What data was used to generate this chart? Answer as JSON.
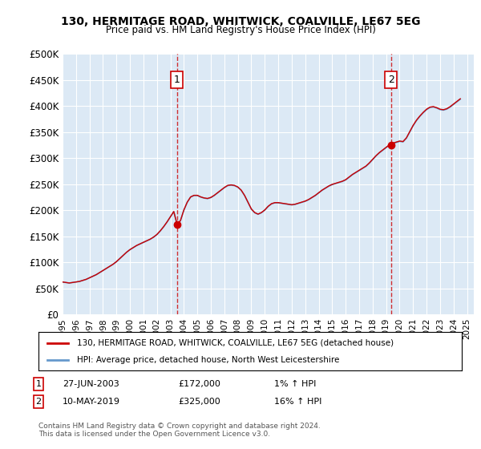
{
  "title": "130, HERMITAGE ROAD, WHITWICK, COALVILLE, LE67 5EG",
  "subtitle": "Price paid vs. HM Land Registry's House Price Index (HPI)",
  "xlabel": "",
  "ylabel": "",
  "ylim": [
    0,
    500000
  ],
  "yticks": [
    0,
    50000,
    100000,
    150000,
    200000,
    250000,
    300000,
    350000,
    400000,
    450000,
    500000
  ],
  "ytick_labels": [
    "£0",
    "£50K",
    "£100K",
    "£150K",
    "£200K",
    "£250K",
    "£300K",
    "£350K",
    "£400K",
    "£450K",
    "£500K"
  ],
  "xlim_start": 1995.0,
  "xlim_end": 2025.5,
  "xtick_years": [
    1995,
    1996,
    1997,
    1998,
    1999,
    2000,
    2001,
    2002,
    2003,
    2004,
    2005,
    2006,
    2007,
    2008,
    2009,
    2010,
    2011,
    2012,
    2013,
    2014,
    2015,
    2016,
    2017,
    2018,
    2019,
    2020,
    2021,
    2022,
    2023,
    2024,
    2025
  ],
  "background_color": "#ffffff",
  "plot_bg_color": "#dce9f5",
  "grid_color": "#ffffff",
  "red_line_color": "#cc0000",
  "blue_line_color": "#6699cc",
  "event1_x": 2003.49,
  "event1_y": 172000,
  "event2_x": 2019.36,
  "event2_y": 325000,
  "legend_line1": "130, HERMITAGE ROAD, WHITWICK, COALVILLE, LE67 5EG (detached house)",
  "legend_line2": "HPI: Average price, detached house, North West Leicestershire",
  "annotation1_label": "1",
  "annotation2_label": "2",
  "table_row1": [
    "1",
    "27-JUN-2003",
    "£172,000",
    "1% ↑ HPI"
  ],
  "table_row2": [
    "2",
    "10-MAY-2019",
    "£325,000",
    "16% ↑ HPI"
  ],
  "footer": "Contains HM Land Registry data © Crown copyright and database right 2024.\nThis data is licensed under the Open Government Licence v3.0.",
  "hpi_data_x": [
    1995.0,
    1995.25,
    1995.5,
    1995.75,
    1996.0,
    1996.25,
    1996.5,
    1996.75,
    1997.0,
    1997.25,
    1997.5,
    1997.75,
    1998.0,
    1998.25,
    1998.5,
    1998.75,
    1999.0,
    1999.25,
    1999.5,
    1999.75,
    2000.0,
    2000.25,
    2000.5,
    2000.75,
    2001.0,
    2001.25,
    2001.5,
    2001.75,
    2002.0,
    2002.25,
    2002.5,
    2002.75,
    2003.0,
    2003.25,
    2003.5,
    2003.75,
    2004.0,
    2004.25,
    2004.5,
    2004.75,
    2005.0,
    2005.25,
    2005.5,
    2005.75,
    2006.0,
    2006.25,
    2006.5,
    2006.75,
    2007.0,
    2007.25,
    2007.5,
    2007.75,
    2008.0,
    2008.25,
    2008.5,
    2008.75,
    2009.0,
    2009.25,
    2009.5,
    2009.75,
    2010.0,
    2010.25,
    2010.5,
    2010.75,
    2011.0,
    2011.25,
    2011.5,
    2011.75,
    2012.0,
    2012.25,
    2012.5,
    2012.75,
    2013.0,
    2013.25,
    2013.5,
    2013.75,
    2014.0,
    2014.25,
    2014.5,
    2014.75,
    2015.0,
    2015.25,
    2015.5,
    2015.75,
    2016.0,
    2016.25,
    2016.5,
    2016.75,
    2017.0,
    2017.25,
    2017.5,
    2017.75,
    2018.0,
    2018.25,
    2018.5,
    2018.75,
    2019.0,
    2019.25,
    2019.5,
    2019.75,
    2020.0,
    2020.25,
    2020.5,
    2020.75,
    2021.0,
    2021.25,
    2021.5,
    2021.75,
    2022.0,
    2022.25,
    2022.5,
    2022.75,
    2023.0,
    2023.25,
    2023.5,
    2023.75,
    2024.0,
    2024.25,
    2024.5
  ],
  "hpi_data_y": [
    62000,
    61000,
    60000,
    61000,
    62000,
    63000,
    65000,
    67000,
    70000,
    73000,
    76000,
    80000,
    84000,
    88000,
    92000,
    96000,
    101000,
    107000,
    113000,
    119000,
    124000,
    128000,
    132000,
    135000,
    138000,
    141000,
    144000,
    148000,
    153000,
    160000,
    168000,
    177000,
    187000,
    197000,
    172000,
    180000,
    200000,
    215000,
    225000,
    228000,
    228000,
    225000,
    223000,
    222000,
    224000,
    228000,
    233000,
    238000,
    243000,
    247000,
    248000,
    247000,
    244000,
    238000,
    228000,
    215000,
    202000,
    195000,
    192000,
    195000,
    200000,
    207000,
    212000,
    214000,
    214000,
    213000,
    212000,
    211000,
    210000,
    211000,
    213000,
    215000,
    217000,
    220000,
    224000,
    228000,
    233000,
    238000,
    242000,
    246000,
    249000,
    251000,
    253000,
    255000,
    258000,
    263000,
    268000,
    272000,
    276000,
    280000,
    284000,
    290000,
    297000,
    304000,
    310000,
    315000,
    320000,
    325000,
    328000,
    330000,
    332000,
    331000,
    338000,
    350000,
    362000,
    372000,
    380000,
    387000,
    393000,
    397000,
    398000,
    396000,
    393000,
    392000,
    394000,
    398000,
    403000,
    408000,
    413000
  ]
}
